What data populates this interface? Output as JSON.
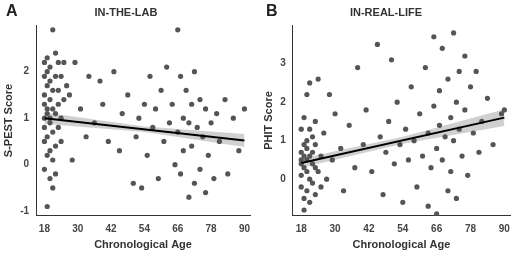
{
  "chart_data": [
    {
      "type": "scatter",
      "panel": "A",
      "title": "IN-THE-LAB",
      "x_label": "Chronological Age",
      "y_label": "S-PEST Score",
      "xlim": [
        15,
        92
      ],
      "xticks": [
        18,
        30,
        42,
        54,
        66,
        78,
        90
      ],
      "ylim": [
        -1.1,
        3.0
      ],
      "yticks": [
        -1,
        0,
        1,
        2
      ],
      "grid": false,
      "series": [
        {
          "type": "scatter",
          "marker": "circle",
          "color": "#555555",
          "x": [
            18,
            18,
            18,
            18,
            18,
            18,
            18,
            18,
            19,
            19,
            19,
            19,
            19,
            19,
            19,
            19,
            20,
            20,
            20,
            20,
            20,
            20,
            20,
            21,
            21,
            21,
            21,
            21,
            21,
            22,
            22,
            22,
            22,
            22,
            23,
            23,
            23,
            23,
            24,
            24,
            24,
            25,
            25,
            26,
            27,
            28,
            29,
            31,
            33,
            34,
            36,
            38,
            39,
            41,
            43,
            45,
            46,
            48,
            50,
            51,
            52,
            53,
            54,
            55,
            56,
            57,
            58,
            59,
            60,
            61,
            62,
            63,
            64,
            65,
            66,
            66,
            67,
            67,
            68,
            68,
            69,
            70,
            70,
            71,
            71,
            72,
            72,
            73,
            74,
            74,
            75,
            76,
            76,
            77,
            78,
            79,
            80,
            81,
            83,
            84,
            86,
            88,
            90
          ],
          "values": [
            1.0,
            1.3,
            0.8,
            1.9,
            2.2,
            0.5,
            -0.1,
            1.5,
            2.3,
            1.7,
            1.1,
            0.6,
            0.2,
            -0.9,
            1.2,
            2.0,
            1.8,
            1.4,
            0.9,
            0.3,
            -0.3,
            2.1,
            1.0,
            2.9,
            1.6,
            0.7,
            1.2,
            -0.5,
            0.1,
            2.4,
            1.9,
            1.1,
            0.4,
            -0.2,
            1.3,
            0.8,
            2.2,
            1.6,
            0.5,
            1.0,
            1.9,
            2.2,
            1.4,
            1.7,
            1.5,
            0.1,
            2.2,
            1.2,
            0.6,
            1.9,
            0.9,
            1.8,
            1.3,
            0.5,
            2.0,
            0.3,
            1.1,
            1.5,
            -0.4,
            0.6,
            1.0,
            -0.5,
            1.3,
            0.2,
            1.9,
            0.8,
            1.2,
            -0.3,
            1.6,
            0.5,
            2.1,
            0.9,
            1.3,
            0.0,
            2.9,
            0.7,
            1.9,
            -0.2,
            1.0,
            0.3,
            1.6,
            -0.7,
            0.9,
            1.3,
            0.4,
            2.0,
            -0.4,
            0.8,
            1.4,
            -0.1,
            0.6,
            1.2,
            -0.6,
            0.2,
            0.9,
            -0.3,
            1.1,
            0.5,
            1.4,
            -0.2,
            1.0,
            0.3,
            1.2
          ]
        },
        {
          "type": "line",
          "line_style": "solid",
          "color": "#000000",
          "x": [
            18,
            90
          ],
          "values": [
            1.0,
            0.52
          ],
          "ci": {
            "x": [
              18,
              54,
              90
            ],
            "lower": [
              0.88,
              0.7,
              0.38
            ],
            "upper": [
              1.12,
              0.82,
              0.66
            ]
          }
        }
      ]
    },
    {
      "type": "scatter",
      "panel": "B",
      "title": "IN-REAL-LIFE",
      "x_label": "Chronological Age",
      "y_label": "PHIT Score",
      "xlim": [
        15,
        92
      ],
      "xticks": [
        18,
        30,
        42,
        54,
        66,
        78,
        90
      ],
      "ylim": [
        -0.95,
        4.0
      ],
      "yticks": [
        0,
        1,
        2,
        3
      ],
      "grid": false,
      "series": [
        {
          "type": "scatter",
          "marker": "circle",
          "color": "#555555",
          "x": [
            18,
            18,
            18,
            18,
            18,
            18,
            19,
            19,
            19,
            19,
            19,
            19,
            20,
            20,
            20,
            20,
            20,
            20,
            21,
            21,
            21,
            21,
            21,
            22,
            22,
            22,
            22,
            23,
            23,
            23,
            23,
            24,
            24,
            25,
            25,
            26,
            27,
            28,
            29,
            30,
            32,
            33,
            35,
            37,
            38,
            40,
            41,
            43,
            45,
            46,
            47,
            48,
            49,
            50,
            51,
            52,
            53,
            54,
            55,
            56,
            57,
            58,
            59,
            60,
            61,
            62,
            63,
            63,
            64,
            65,
            65,
            66,
            66,
            67,
            67,
            68,
            68,
            69,
            70,
            70,
            71,
            71,
            72,
            72,
            73,
            73,
            74,
            74,
            75,
            76,
            76,
            77,
            78,
            79,
            80,
            81,
            82,
            84,
            86,
            89,
            90
          ],
          "values": [
            0.4,
            0.7,
            0.1,
            -0.2,
            1.3,
            0.5,
            0.9,
            -0.5,
            0.3,
            1.6,
            0.6,
            -0.8,
            0.2,
            1.0,
            0.5,
            -0.3,
            2.2,
            0.8,
            0.0,
            1.3,
            0.6,
            -0.6,
            2.5,
            0.4,
            1.1,
            -0.1,
            0.7,
            0.3,
            1.5,
            -0.4,
            0.9,
            0.2,
            2.6,
            0.6,
            -0.2,
            1.2,
            0.0,
            2.2,
            0.5,
            1.7,
            0.8,
            -0.3,
            1.4,
            0.3,
            2.9,
            0.9,
            1.8,
            0.2,
            3.5,
            1.1,
            -0.4,
            0.7,
            1.5,
            3.1,
            0.4,
            2.0,
            0.9,
            -0.6,
            1.3,
            0.5,
            2.4,
            1.0,
            -0.2,
            1.7,
            0.6,
            2.9,
            1.2,
            -0.7,
            0.3,
            1.9,
            3.7,
            0.8,
            -0.9,
            2.3,
            1.4,
            0.5,
            3.4,
            1.1,
            2.6,
            -0.3,
            1.6,
            0.2,
            3.8,
            1.0,
            2.0,
            -0.5,
            1.3,
            2.8,
            0.6,
            3.2,
            1.8,
            0.1,
            2.4,
            1.2,
            2.8,
            0.7,
            1.5,
            2.1,
            0.9,
            1.7,
            1.8
          ]
        },
        {
          "type": "line",
          "line_style": "solid",
          "color": "#000000",
          "x": [
            18,
            90
          ],
          "values": [
            0.42,
            1.6
          ],
          "ci": {
            "x": [
              18,
              54,
              90
            ],
            "lower": [
              0.3,
              0.92,
              1.38
            ],
            "upper": [
              0.54,
              1.1,
              1.82
            ]
          }
        }
      ]
    }
  ]
}
